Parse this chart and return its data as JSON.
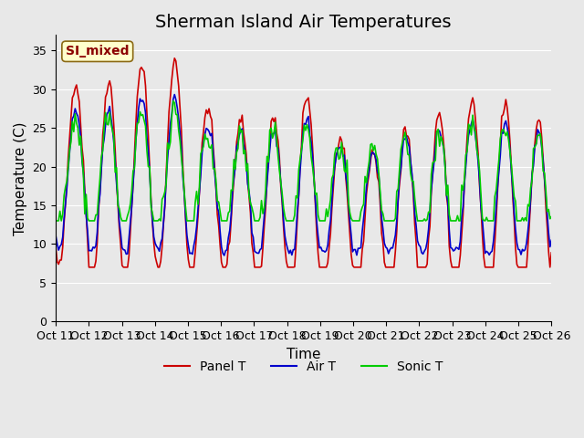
{
  "title": "Sherman Island Air Temperatures",
  "xlabel": "Time",
  "ylabel": "Temperature (C)",
  "ylim": [
    0,
    37
  ],
  "yticks": [
    0,
    5,
    10,
    15,
    20,
    25,
    30,
    35
  ],
  "x_tick_labels": [
    "Oct 11",
    "Oct 12",
    "Oct 13",
    "Oct 14",
    "Oct 15",
    "Oct 16",
    "Oct 17",
    "Oct 18",
    "Oct 19",
    "Oct 20",
    "Oct 21",
    "Oct 22",
    "Oct 23",
    "Oct 24",
    "Oct 25",
    "Oct 26"
  ],
  "line_colors": {
    "panel": "#cc0000",
    "air": "#0000cc",
    "sonic": "#00cc00"
  },
  "line_widths": {
    "panel": 1.2,
    "air": 1.2,
    "sonic": 1.2
  },
  "legend_labels": [
    "Panel T",
    "Air T",
    "Sonic T"
  ],
  "annotation_text": "SI_mixed",
  "annotation_color": "#8b0000",
  "annotation_bg": "#ffffcc",
  "bg_color": "#e8e8e8",
  "plot_bg": "#f0f0f0",
  "title_fontsize": 14,
  "axis_fontsize": 11,
  "tick_fontsize": 9,
  "num_points": 360
}
